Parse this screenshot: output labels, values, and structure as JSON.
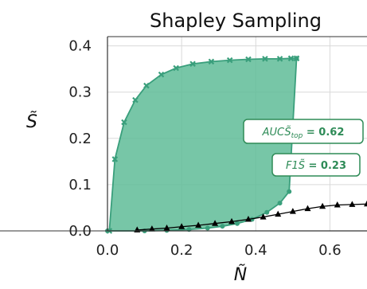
{
  "chart_data": {
    "type": "scatter",
    "title": "Shapley Sampling",
    "xlabel": "Ñ",
    "ylabel": "S̃",
    "xlim": [
      0,
      0.7
    ],
    "ylim": [
      0,
      0.42
    ],
    "xticks": [
      0.0,
      0.2,
      0.4,
      0.6
    ],
    "xtick_labels": [
      "0.0",
      "0.2",
      "0.4",
      "0.6"
    ],
    "yticks": [
      0.0,
      0.1,
      0.2,
      0.3,
      0.4
    ],
    "ytick_labels": [
      "0.0",
      "0.1",
      "0.2",
      "0.3",
      "0.4"
    ],
    "grid": true,
    "colors": {
      "top": "#3a9f7c",
      "fill": "#5fbc98",
      "bottom": "#000000"
    },
    "series": [
      {
        "marker": "x",
        "color": "#3a9f7c",
        "x": [
          0.005,
          0.02,
          0.045,
          0.075,
          0.105,
          0.145,
          0.185,
          0.23,
          0.28,
          0.33,
          0.38,
          0.425,
          0.465,
          0.495,
          0.51
        ],
        "y": [
          0.0,
          0.155,
          0.235,
          0.283,
          0.314,
          0.338,
          0.352,
          0.361,
          0.366,
          0.369,
          0.371,
          0.372,
          0.372,
          0.373,
          0.373
        ]
      },
      {
        "marker": "o",
        "color": "#3a9f7c",
        "x": [
          0.0,
          0.1,
          0.16,
          0.22,
          0.27,
          0.31,
          0.35,
          0.39,
          0.43,
          0.465,
          0.49,
          0.51
        ],
        "y": [
          0.0,
          0.0,
          0.001,
          0.003,
          0.006,
          0.01,
          0.016,
          0.025,
          0.04,
          0.06,
          0.085,
          0.373
        ]
      },
      {
        "marker": "^",
        "color": "#000000",
        "x": [
          0.08,
          0.12,
          0.16,
          0.2,
          0.245,
          0.29,
          0.335,
          0.38,
          0.42,
          0.46,
          0.5,
          0.54,
          0.58,
          0.62,
          0.66,
          0.7
        ],
        "y": [
          0.002,
          0.004,
          0.006,
          0.009,
          0.012,
          0.016,
          0.02,
          0.025,
          0.03,
          0.036,
          0.042,
          0.048,
          0.053,
          0.056,
          0.057,
          0.058
        ]
      }
    ],
    "annotations": [
      {
        "label_main": "AUCS̃",
        "label_sub": "top",
        "label_value": " = 0.62"
      },
      {
        "label_main": "F1S̃",
        "label_value": " = 0.23"
      }
    ]
  }
}
